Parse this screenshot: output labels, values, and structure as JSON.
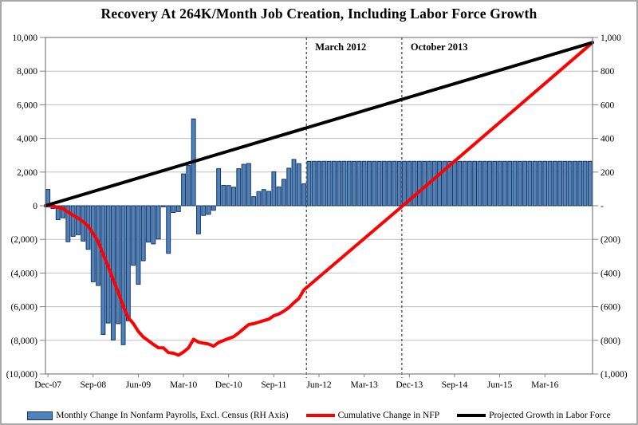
{
  "title": "Recovery At 264K/Month Job Creation, Including Labor Force Growth",
  "annotations": [
    {
      "label": "March 2012",
      "month": 52
    },
    {
      "label": "October 2013",
      "month": 71
    }
  ],
  "axes": {
    "left_ticks": [
      "10,000",
      "8,000",
      "6,000",
      "4,000",
      "2,000",
      "0",
      "(2,000)",
      "(4,000)",
      "(6,000)",
      "(8,000)",
      "(10,000)"
    ],
    "right_ticks": [
      "1,000",
      "800",
      "600",
      "400",
      "200",
      "-",
      "(200)",
      "(400)",
      "(600)",
      "(800)",
      "(1,000)"
    ],
    "x_ticks": [
      "Dec-07",
      "Sep-08",
      "Jun-09",
      "Mar-10",
      "Dec-10",
      "Sep-11",
      "Jun-12",
      "Mar-13",
      "Dec-13",
      "Sep-14",
      "Jun-15",
      "Mar-16"
    ],
    "x_tick_interval_months": 9,
    "left_range": [
      -10000,
      10000
    ],
    "right_range": [
      -1000,
      1000
    ],
    "grid_step_left": 2000
  },
  "legend": [
    {
      "label": "Monthly Change In Nonfarm Payrolls, Excl. Census (RH Axis)",
      "type": "bar",
      "color": "#4f81bd"
    },
    {
      "label": "Cumulative Change in NFP",
      "type": "line",
      "color": "#ff0000"
    },
    {
      "label": "Projected Growth in Labor Force",
      "type": "line",
      "color": "#000000"
    }
  ],
  "colors": {
    "bar_fill": "#4f81bd",
    "bar_border": "#17375e",
    "red_line": "#ff0000",
    "black_line": "#000000",
    "gridline": "#bfbfbf",
    "plot_border": "#7f7f7f",
    "dashed_line": "#595959",
    "axis_text": "#000000"
  },
  "chart_data": {
    "type": "bar",
    "combo": true,
    "months_total": 109,
    "start_month_label": "Dec-07",
    "bars": {
      "name": "Monthly Change In Nonfarm Payrolls, Excl. Census (RH Axis)",
      "axis": "right",
      "actual_values": [
        97,
        -17,
        -83,
        -72,
        -214,
        -182,
        -172,
        -210,
        -259,
        -452,
        -474,
        -765,
        -697,
        -798,
        -701,
        -826,
        -684,
        -354,
        -467,
        -327,
        -216,
        -227,
        -198,
        -6,
        -283,
        -40,
        -35,
        189,
        239,
        516,
        -167,
        -58,
        -51,
        -27,
        220,
        121,
        120,
        110,
        220,
        246,
        251,
        54,
        84,
        96,
        85,
        202,
        112,
        157,
        223,
        275,
        250,
        130
      ],
      "projected_from_month": 52,
      "projected_value": 264
    },
    "cumulative_line": {
      "name": "Cumulative Change in NFP",
      "axis": "left",
      "anchors": [
        [
          -0.5,
          0
        ],
        [
          1,
          -20
        ],
        [
          2,
          -100
        ],
        [
          3,
          -170
        ],
        [
          4,
          -380
        ],
        [
          5,
          -560
        ],
        [
          6,
          -740
        ],
        [
          7,
          -950
        ],
        [
          8,
          -1210
        ],
        [
          9,
          -1660
        ],
        [
          10,
          -2140
        ],
        [
          11,
          -2900
        ],
        [
          12,
          -3600
        ],
        [
          13,
          -4400
        ],
        [
          14,
          -5150
        ],
        [
          15,
          -5980
        ],
        [
          16,
          -6650
        ],
        [
          17,
          -7000
        ],
        [
          18,
          -7470
        ],
        [
          19,
          -7800
        ],
        [
          20,
          -8020
        ],
        [
          21,
          -8240
        ],
        [
          22,
          -8440
        ],
        [
          23,
          -8450
        ],
        [
          24,
          -8730
        ],
        [
          25,
          -8770
        ],
        [
          26,
          -8880
        ],
        [
          27,
          -8690
        ],
        [
          28,
          -8450
        ],
        [
          29,
          -7940
        ],
        [
          30,
          -8110
        ],
        [
          31,
          -8170
        ],
        [
          32,
          -8220
        ],
        [
          33,
          -8350
        ],
        [
          34,
          -8130
        ],
        [
          35,
          -8010
        ],
        [
          36,
          -7890
        ],
        [
          37,
          -7780
        ],
        [
          38,
          -7560
        ],
        [
          39,
          -7310
        ],
        [
          40,
          -7060
        ],
        [
          41,
          -7010
        ],
        [
          42,
          -6920
        ],
        [
          43,
          -6830
        ],
        [
          44,
          -6740
        ],
        [
          45,
          -6540
        ],
        [
          46,
          -6430
        ],
        [
          47,
          -6270
        ],
        [
          48,
          -6050
        ],
        [
          49,
          -5770
        ],
        [
          50,
          -5510
        ],
        [
          51,
          -5000
        ],
        [
          70.7,
          0
        ],
        [
          108.6,
          9700
        ]
      ]
    },
    "projection_line": {
      "name": "Projected Growth in Labor Force",
      "axis": "left",
      "anchors": [
        [
          -0.5,
          0
        ],
        [
          108.6,
          9700
        ]
      ]
    }
  }
}
